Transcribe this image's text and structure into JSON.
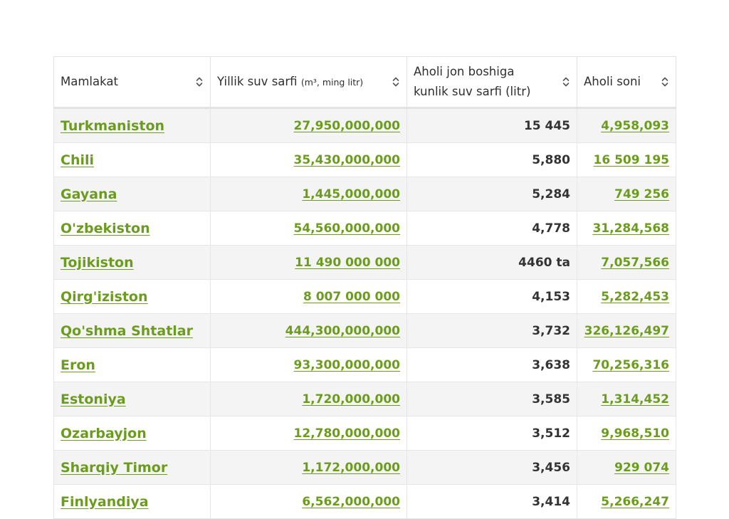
{
  "header": {
    "col1": "Mamlakat",
    "col2_main": "Yillik suv sarfi",
    "col2_unit": "(m³, ming litr)",
    "col3_line1": "Aholi jon boshiga",
    "col3_line2": "kunlik suv sarfi (litr)",
    "col4": "Aholi soni",
    "sort_icon": "sort-updown-icon"
  },
  "rows": [
    {
      "country": "Turkmaniston",
      "annual": "27,950,000,000",
      "per_capita": "15 445",
      "population": "4,958,093"
    },
    {
      "country": "Chili",
      "annual": "35,430,000,000",
      "per_capita": "5,880",
      "population": "16 509 195"
    },
    {
      "country": "Gayana",
      "annual": "1,445,000,000",
      "per_capita": "5,284",
      "population": "749 256"
    },
    {
      "country": "O'zbekiston",
      "annual": "54,560,000,000",
      "per_capita": "4,778",
      "population": "31,284,568"
    },
    {
      "country": "Tojikiston",
      "annual": "11 490 000 000",
      "per_capita": "4460 ta",
      "population": "7,057,566"
    },
    {
      "country": "Qirg'iziston",
      "annual": "8 007 000 000",
      "per_capita": "4,153",
      "population": "5,282,453"
    },
    {
      "country": "Qo'shma Shtatlar",
      "annual": "444,300,000,000",
      "per_capita": "3,732",
      "population": "326,126,497"
    },
    {
      "country": "Eron",
      "annual": "93,300,000,000",
      "per_capita": "3,638",
      "population": "70,256,316"
    },
    {
      "country": "Estoniya",
      "annual": "1,720,000,000",
      "per_capita": "3,585",
      "population": "1,314,452"
    },
    {
      "country": "Ozarbayjon",
      "annual": "12,780,000,000",
      "per_capita": "3,512",
      "population": "9,968,510"
    },
    {
      "country": "Sharqiy Timor",
      "annual": "1,172,000,000",
      "per_capita": "3,456",
      "population": "929 074"
    },
    {
      "country": "Finlyandiya",
      "annual": "6,562,000,000",
      "per_capita": "3,414",
      "population": "5,266,247"
    }
  ],
  "colors": {
    "link": "#6c9c1f",
    "stripe": "#f4f4f4"
  }
}
